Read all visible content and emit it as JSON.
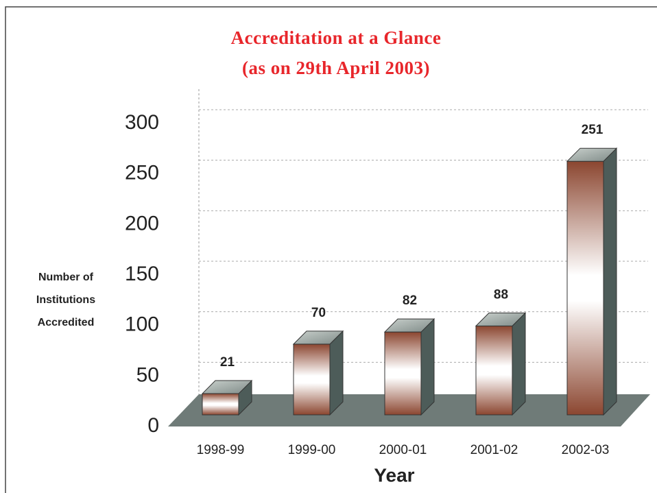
{
  "chart_data": {
    "type": "bar3d",
    "title": "Accreditation at a Glance",
    "subtitle": "(as on 29th April 2003)",
    "xlabel": "Year",
    "ylabel": [
      "Number of",
      "Institutions",
      "Accredited"
    ],
    "categories": [
      "1998-99",
      "1999-00",
      "2000-01",
      "2001-02",
      "2002-03"
    ],
    "values": [
      21,
      70,
      82,
      88,
      251
    ],
    "ylim": [
      0,
      300
    ],
    "yticks": [
      0,
      50,
      100,
      150,
      200,
      250,
      300
    ],
    "color": "#8b4630",
    "grid": true
  }
}
